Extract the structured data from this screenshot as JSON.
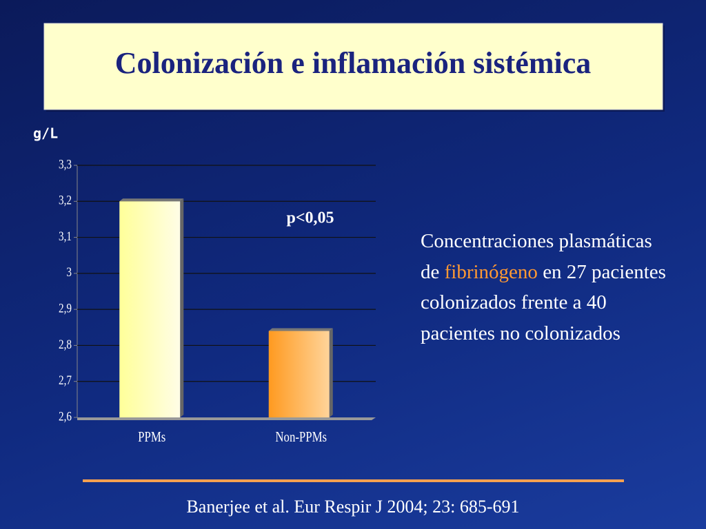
{
  "chart_data": {
    "type": "bar",
    "title": "Colonización e inflamación sistémica",
    "y_label": "g/L",
    "annotation": "p<0,05",
    "categories": [
      "PPMs",
      "Non-PPMs"
    ],
    "values": [
      3.2,
      2.84
    ],
    "colors": [
      "#ffff99",
      "#ff9a20"
    ],
    "ylim": [
      2.6,
      3.3
    ],
    "yticks": [
      {
        "value": 2.6,
        "label": "2,6"
      },
      {
        "value": 2.7,
        "label": "2,7"
      },
      {
        "value": 2.8,
        "label": "2,8"
      },
      {
        "value": 2.9,
        "label": "2,9"
      },
      3,
      {
        "value": 3.1,
        "label": "3,1"
      },
      {
        "value": 3.2,
        "label": "3,2"
      },
      {
        "value": 3.3,
        "label": "3,3"
      }
    ],
    "grid": true
  },
  "description": {
    "before": "Concentraciones plasmáticas de",
    "highlight": "fibrinógeno",
    "after": "en 27 pacientes colonizados frente a 40 pacientes no colonizados"
  },
  "citation": "Banerjee et al. Eur Respir J 2004; 23: 685-691"
}
